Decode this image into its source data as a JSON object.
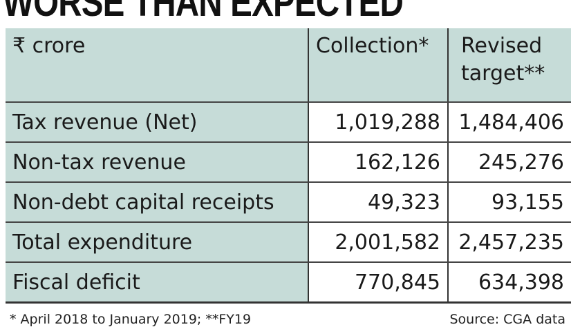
{
  "title": "WORSE THAN EXPECTED",
  "chart_data": {
    "type": "table",
    "columns": [
      "₹ crore",
      "Collection*",
      "Revised target**"
    ],
    "rows": [
      {
        "label": "Tax revenue (Net)",
        "collection": "1,019,288",
        "revised_target": "1,484,406"
      },
      {
        "label": "Non-tax revenue",
        "collection": "162,126",
        "revised_target": "245,276"
      },
      {
        "label": "Non-debt capital receipts",
        "collection": "49,323",
        "revised_target": "93,155"
      },
      {
        "label": "Total expenditure",
        "collection": "2,001,582",
        "revised_target": "2,457,235"
      },
      {
        "label": "Fiscal deficit",
        "collection": "770,845",
        "revised_target": "634,398"
      }
    ]
  },
  "footnote": "* April 2018 to January 2019; **FY19",
  "source": "Source: CGA data",
  "colors": {
    "label_bg": "#c6dcd8",
    "text": "#1a1a1a"
  }
}
